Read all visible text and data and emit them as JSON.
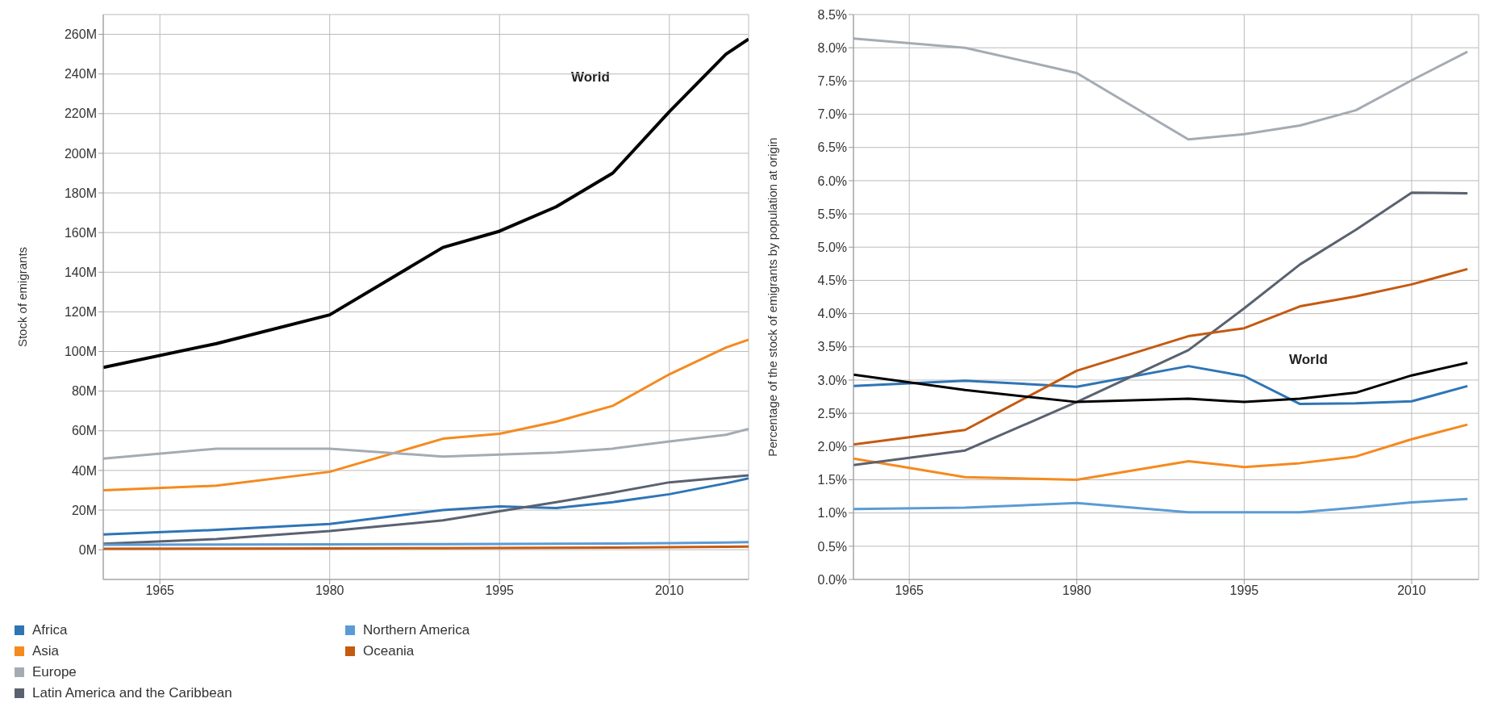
{
  "chart_data": [
    {
      "type": "line",
      "ylabel": "Stock of emigrants",
      "x": [
        1960,
        1970,
        1980,
        1990,
        1995,
        2000,
        2005,
        2010,
        2015,
        2017
      ],
      "xlim": [
        1960,
        2017
      ],
      "xticks": [
        1965,
        1980,
        1995,
        2010
      ],
      "ylim": [
        -15,
        270
      ],
      "yticks": [
        {
          "value": 0,
          "label": "0M"
        },
        {
          "value": 20,
          "label": "20M"
        },
        {
          "value": 40,
          "label": "40M"
        },
        {
          "value": 60,
          "label": "60M"
        },
        {
          "value": 80,
          "label": "80M"
        },
        {
          "value": 100,
          "label": "100M"
        },
        {
          "value": 120,
          "label": "120M"
        },
        {
          "value": 140,
          "label": "140M"
        },
        {
          "value": 160,
          "label": "160M"
        },
        {
          "value": 180,
          "label": "180M"
        },
        {
          "value": 200,
          "label": "200M"
        },
        {
          "value": 220,
          "label": "220M"
        },
        {
          "value": 240,
          "label": "240M"
        },
        {
          "value": 260,
          "label": "260M"
        }
      ],
      "grid": true,
      "legend": "bottom",
      "annotations": [
        "World"
      ],
      "series": [
        {
          "name": "Africa",
          "color": "#2e75b6",
          "values": [
            7.7,
            10,
            13,
            20,
            21.8,
            21,
            24,
            28,
            33.5,
            36
          ]
        },
        {
          "name": "Asia",
          "color": "#f58a1f",
          "values": [
            30,
            32.3,
            39.3,
            56,
            58.5,
            64.6,
            72.6,
            88.5,
            102,
            106
          ]
        },
        {
          "name": "Europe",
          "color": "#a5abb3",
          "values": [
            46,
            51,
            51,
            47,
            48,
            49,
            51,
            54.6,
            58,
            61
          ]
        },
        {
          "name": "Latin America and the Caribbean",
          "color": "#5a6270",
          "values": [
            3,
            5.4,
            9.4,
            14.8,
            19.4,
            24,
            28.8,
            34,
            36.5,
            37.5
          ]
        },
        {
          "name": "Northern America",
          "color": "#5b9bd5",
          "values": [
            2.5,
            2.6,
            2.7,
            2.8,
            2.9,
            3,
            3.1,
            3.3,
            3.6,
            3.8
          ]
        },
        {
          "name": "Oceania",
          "color": "#c55a11",
          "values": [
            0.5,
            0.6,
            0.7,
            0.8,
            0.9,
            1.0,
            1.1,
            1.3,
            1.5,
            1.6
          ]
        },
        {
          "color": "#000000",
          "values": [
            92,
            104,
            118.5,
            152.5,
            160.7,
            173,
            190,
            221,
            250,
            257.6
          ]
        }
      ]
    },
    {
      "type": "line",
      "ylabel": "Percentage of the stock of emigrants by population at origin",
      "x": [
        1960,
        1970,
        1980,
        1990,
        1995,
        2000,
        2005,
        2010,
        2015
      ],
      "xlim": [
        1960,
        2016
      ],
      "xticks": [
        1965,
        1980,
        1995,
        2010
      ],
      "ylim": [
        0,
        8.5
      ],
      "yticks": [
        {
          "value": 0,
          "label": "0.0%"
        },
        {
          "value": 0.5,
          "label": "0.5%"
        },
        {
          "value": 1,
          "label": "1.0%"
        },
        {
          "value": 1.5,
          "label": "1.5%"
        },
        {
          "value": 2,
          "label": "2.0%"
        },
        {
          "value": 2.5,
          "label": "2.5%"
        },
        {
          "value": 3,
          "label": "3.0%"
        },
        {
          "value": 3.5,
          "label": "3.5%"
        },
        {
          "value": 4,
          "label": "4.0%"
        },
        {
          "value": 4.5,
          "label": "4.5%"
        },
        {
          "value": 5,
          "label": "5.0%"
        },
        {
          "value": 5.5,
          "label": "5.5%"
        },
        {
          "value": 6,
          "label": "6.0%"
        },
        {
          "value": 6.5,
          "label": "6.5%"
        },
        {
          "value": 7,
          "label": "7.0%"
        },
        {
          "value": 7.5,
          "label": "7.5%"
        },
        {
          "value": 8,
          "label": "8.0%"
        },
        {
          "value": 8.5,
          "label": "8.5%"
        }
      ],
      "grid": true,
      "annotations": [
        "World"
      ],
      "series": [
        {
          "color": "#2e75b6",
          "values": [
            2.91,
            2.99,
            2.9,
            3.21,
            3.06,
            2.64,
            2.65,
            2.68,
            2.91
          ]
        },
        {
          "color": "#f58a1f",
          "values": [
            1.82,
            1.54,
            1.5,
            1.78,
            1.69,
            1.75,
            1.85,
            2.11,
            2.33
          ]
        },
        {
          "color": "#a5abb3",
          "values": [
            8.14,
            8.0,
            7.62,
            6.62,
            6.7,
            6.83,
            7.06,
            7.51,
            7.94
          ]
        },
        {
          "color": "#5a6270",
          "values": [
            1.72,
            1.94,
            2.67,
            3.45,
            4.08,
            4.74,
            5.26,
            5.82,
            5.81
          ]
        },
        {
          "color": "#5b9bd5",
          "values": [
            1.06,
            1.08,
            1.15,
            1.01,
            1.01,
            1.01,
            1.08,
            1.16,
            1.21
          ]
        },
        {
          "color": "#c55a11",
          "values": [
            2.03,
            2.25,
            3.14,
            3.66,
            3.78,
            4.11,
            4.26,
            4.44,
            4.67
          ]
        },
        {
          "color": "#000000",
          "values": [
            3.08,
            2.85,
            2.67,
            2.72,
            2.67,
            2.72,
            2.81,
            3.07,
            3.26
          ]
        }
      ]
    }
  ]
}
